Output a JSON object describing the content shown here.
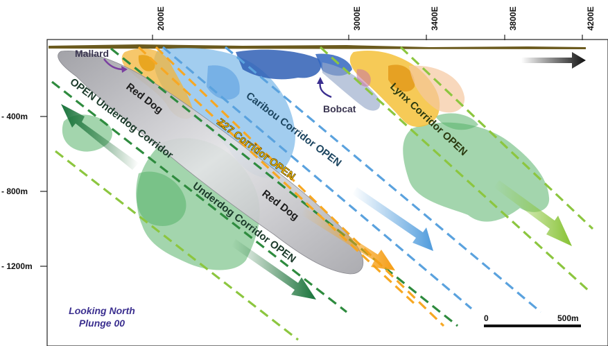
{
  "easting_labels": [
    "2000E",
    "3000E",
    "3400E",
    "3800E",
    "4200E"
  ],
  "depth_labels": [
    "- 400m",
    "- 800m",
    "- 1200m"
  ],
  "corridors": {
    "red_dog_upper": "Red Dog",
    "red_dog_lower": "Red Dog",
    "z27": "Z27  Corridor OPEN",
    "caribou": "Caribou Corridor OPEN",
    "lynx": "Lynx Corridor OPEN",
    "underdog_upper": "OPEN Underdog  Corridor",
    "underdog_lower": "Underdog  Corridor OPEN"
  },
  "places": {
    "mallard": "Mallard",
    "bobcat": "Bobcat"
  },
  "view": {
    "line1": "Looking North",
    "line2": "Plunge 00"
  },
  "scale": {
    "start": "0",
    "end": "500m"
  },
  "colors": {
    "green": "#1e8a3c",
    "light_green": "#8cc63f",
    "orange": "#f7a823",
    "blue": "#5aa2de",
    "red_dog": "#c8c8cc",
    "label_dark": "#1c3a4a"
  }
}
